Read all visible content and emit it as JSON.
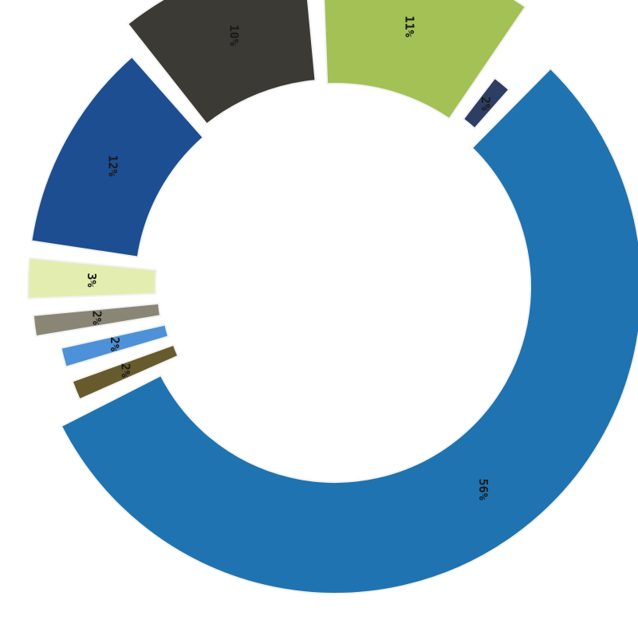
{
  "chart_data": {
    "type": "pie",
    "style": "exploded-donut",
    "legend": "none",
    "slices": [
      {
        "label": "56%",
        "value": 56,
        "color": "#1f73b0"
      },
      {
        "label": "2%",
        "value": 2,
        "color": "#675b2d"
      },
      {
        "label": "2%",
        "value": 2,
        "color": "#4d92d8"
      },
      {
        "label": "2%",
        "value": 2,
        "color": "#8a8676"
      },
      {
        "label": "3%",
        "value": 3,
        "color": "#e3edb0"
      },
      {
        "label": "12%",
        "value": 12,
        "color": "#1d4e92"
      },
      {
        "label": "10%",
        "value": 10,
        "color": "#3b3a35"
      },
      {
        "label": "11%",
        "value": 11,
        "color": "#a3c155"
      },
      {
        "label": "2%",
        "value": 2,
        "color": "#2e3d63"
      }
    ]
  }
}
